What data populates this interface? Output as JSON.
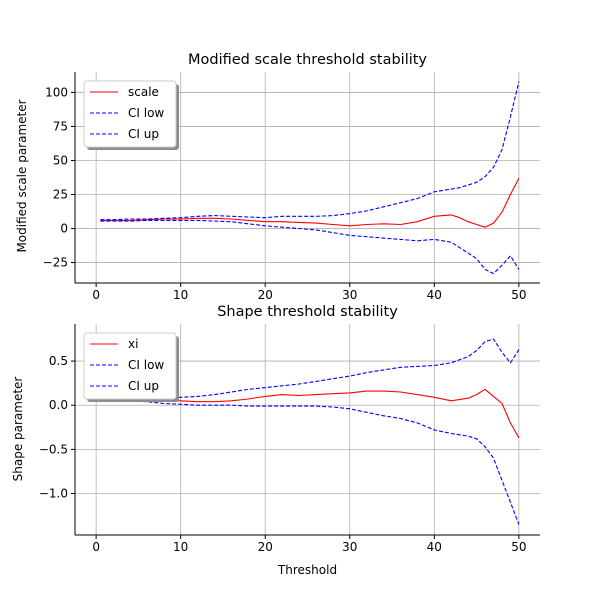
{
  "chart_data": [
    {
      "type": "line",
      "title": "Modified scale threshold stability",
      "xlabel": "",
      "ylabel": "Modified scale parameter",
      "xlim": [
        -2.5,
        52.5
      ],
      "ylim": [
        -40,
        115
      ],
      "xticks": [
        0,
        10,
        20,
        30,
        40,
        50
      ],
      "yticks": [
        -25,
        0,
        25,
        50,
        75,
        100
      ],
      "grid": true,
      "legend_position": "top-left",
      "series": [
        {
          "name": "scale",
          "color": "#ff0000",
          "dash": "solid",
          "points": [
            [
              0.5,
              6
            ],
            [
              2,
              6
            ],
            [
              4,
              6
            ],
            [
              6,
              6.5
            ],
            [
              8,
              7
            ],
            [
              10,
              7
            ],
            [
              12,
              7.5
            ],
            [
              14,
              7.5
            ],
            [
              16,
              7
            ],
            [
              18,
              6
            ],
            [
              20,
              5
            ],
            [
              22,
              5
            ],
            [
              24,
              4.5
            ],
            [
              26,
              4
            ],
            [
              28,
              3
            ],
            [
              30,
              2
            ],
            [
              32,
              3
            ],
            [
              34,
              3.5
            ],
            [
              36,
              3
            ],
            [
              38,
              5
            ],
            [
              40,
              9
            ],
            [
              42,
              10
            ],
            [
              43,
              8
            ],
            [
              44,
              5
            ],
            [
              45,
              3
            ],
            [
              46,
              1
            ],
            [
              47,
              4
            ],
            [
              48,
              12
            ],
            [
              49,
              25
            ],
            [
              50,
              37
            ]
          ]
        },
        {
          "name": "CI low",
          "color": "#0000ff",
          "dash": "dashed",
          "points": [
            [
              0.5,
              5.5
            ],
            [
              2,
              5.5
            ],
            [
              4,
              5.5
            ],
            [
              6,
              6
            ],
            [
              8,
              6
            ],
            [
              10,
              6
            ],
            [
              12,
              6
            ],
            [
              14,
              5.5
            ],
            [
              16,
              5
            ],
            [
              18,
              3.5
            ],
            [
              20,
              2
            ],
            [
              22,
              1
            ],
            [
              24,
              0
            ],
            [
              26,
              -1
            ],
            [
              28,
              -3
            ],
            [
              30,
              -5
            ],
            [
              32,
              -6
            ],
            [
              34,
              -7
            ],
            [
              36,
              -8
            ],
            [
              38,
              -9
            ],
            [
              40,
              -8
            ],
            [
              42,
              -10
            ],
            [
              43,
              -14
            ],
            [
              44,
              -18
            ],
            [
              45,
              -22
            ],
            [
              46,
              -30
            ],
            [
              47,
              -33
            ],
            [
              48,
              -27
            ],
            [
              49,
              -20
            ],
            [
              50,
              -30
            ]
          ]
        },
        {
          "name": "CI up",
          "color": "#0000ff",
          "dash": "dashed",
          "points": [
            [
              0.5,
              6.5
            ],
            [
              2,
              6.5
            ],
            [
              4,
              7
            ],
            [
              6,
              7
            ],
            [
              8,
              7.5
            ],
            [
              10,
              8
            ],
            [
              12,
              9
            ],
            [
              14,
              9.5
            ],
            [
              16,
              9
            ],
            [
              18,
              8.5
            ],
            [
              20,
              8
            ],
            [
              22,
              9
            ],
            [
              24,
              9
            ],
            [
              26,
              9
            ],
            [
              28,
              9.5
            ],
            [
              30,
              11
            ],
            [
              32,
              13
            ],
            [
              34,
              16
            ],
            [
              36,
              19
            ],
            [
              38,
              22
            ],
            [
              40,
              27
            ],
            [
              42,
              29
            ],
            [
              43,
              30
            ],
            [
              44,
              32
            ],
            [
              45,
              34
            ],
            [
              46,
              38
            ],
            [
              47,
              45
            ],
            [
              48,
              58
            ],
            [
              49,
              82
            ],
            [
              50,
              108
            ]
          ]
        }
      ]
    },
    {
      "type": "line",
      "title": "Shape threshold stability",
      "xlabel": "Threshold",
      "ylabel": "Shape parameter",
      "xlim": [
        -2.5,
        52.5
      ],
      "ylim": [
        -1.47,
        0.92
      ],
      "xticks": [
        0,
        10,
        20,
        30,
        40,
        50
      ],
      "yticks": [
        -1.0,
        -0.5,
        0.0,
        0.5
      ],
      "grid": true,
      "legend_position": "top-left",
      "series": [
        {
          "name": "xi",
          "color": "#ff0000",
          "dash": "solid",
          "points": [
            [
              0.5,
              0.07
            ],
            [
              2,
              0.07
            ],
            [
              4,
              0.06
            ],
            [
              6,
              0.06
            ],
            [
              8,
              0.05
            ],
            [
              10,
              0.05
            ],
            [
              12,
              0.04
            ],
            [
              14,
              0.04
            ],
            [
              16,
              0.05
            ],
            [
              18,
              0.07
            ],
            [
              20,
              0.1
            ],
            [
              22,
              0.12
            ],
            [
              24,
              0.11
            ],
            [
              26,
              0.12
            ],
            [
              28,
              0.13
            ],
            [
              30,
              0.14
            ],
            [
              32,
              0.16
            ],
            [
              34,
              0.16
            ],
            [
              36,
              0.15
            ],
            [
              38,
              0.12
            ],
            [
              40,
              0.09
            ],
            [
              42,
              0.05
            ],
            [
              44,
              0.08
            ],
            [
              45,
              0.12
            ],
            [
              46,
              0.18
            ],
            [
              47,
              0.1
            ],
            [
              48,
              0.02
            ],
            [
              49,
              -0.2
            ],
            [
              50,
              -0.37
            ]
          ]
        },
        {
          "name": "CI low",
          "color": "#0000ff",
          "dash": "dashed",
          "points": [
            [
              0.5,
              0.07
            ],
            [
              2,
              0.06
            ],
            [
              4,
              0.05
            ],
            [
              6,
              0.04
            ],
            [
              8,
              0.02
            ],
            [
              10,
              0.01
            ],
            [
              12,
              0.0
            ],
            [
              14,
              0.0
            ],
            [
              16,
              0.0
            ],
            [
              18,
              -0.01
            ],
            [
              20,
              -0.01
            ],
            [
              22,
              -0.01
            ],
            [
              24,
              -0.01
            ],
            [
              26,
              -0.01
            ],
            [
              28,
              -0.02
            ],
            [
              30,
              -0.04
            ],
            [
              32,
              -0.08
            ],
            [
              34,
              -0.12
            ],
            [
              36,
              -0.15
            ],
            [
              38,
              -0.2
            ],
            [
              40,
              -0.28
            ],
            [
              42,
              -0.32
            ],
            [
              44,
              -0.35
            ],
            [
              45,
              -0.38
            ],
            [
              46,
              -0.47
            ],
            [
              47,
              -0.6
            ],
            [
              48,
              -0.85
            ],
            [
              49,
              -1.1
            ],
            [
              50,
              -1.35
            ]
          ]
        },
        {
          "name": "CI up",
          "color": "#0000ff",
          "dash": "dashed",
          "points": [
            [
              0.5,
              0.08
            ],
            [
              2,
              0.08
            ],
            [
              4,
              0.08
            ],
            [
              6,
              0.08
            ],
            [
              8,
              0.08
            ],
            [
              10,
              0.09
            ],
            [
              12,
              0.1
            ],
            [
              14,
              0.12
            ],
            [
              16,
              0.15
            ],
            [
              18,
              0.18
            ],
            [
              20,
              0.2
            ],
            [
              22,
              0.22
            ],
            [
              24,
              0.24
            ],
            [
              26,
              0.27
            ],
            [
              28,
              0.3
            ],
            [
              30,
              0.33
            ],
            [
              32,
              0.37
            ],
            [
              34,
              0.4
            ],
            [
              36,
              0.43
            ],
            [
              38,
              0.44
            ],
            [
              40,
              0.45
            ],
            [
              42,
              0.48
            ],
            [
              44,
              0.55
            ],
            [
              45,
              0.62
            ],
            [
              46,
              0.72
            ],
            [
              47,
              0.75
            ],
            [
              48,
              0.6
            ],
            [
              49,
              0.48
            ],
            [
              50,
              0.63
            ]
          ]
        }
      ]
    }
  ]
}
